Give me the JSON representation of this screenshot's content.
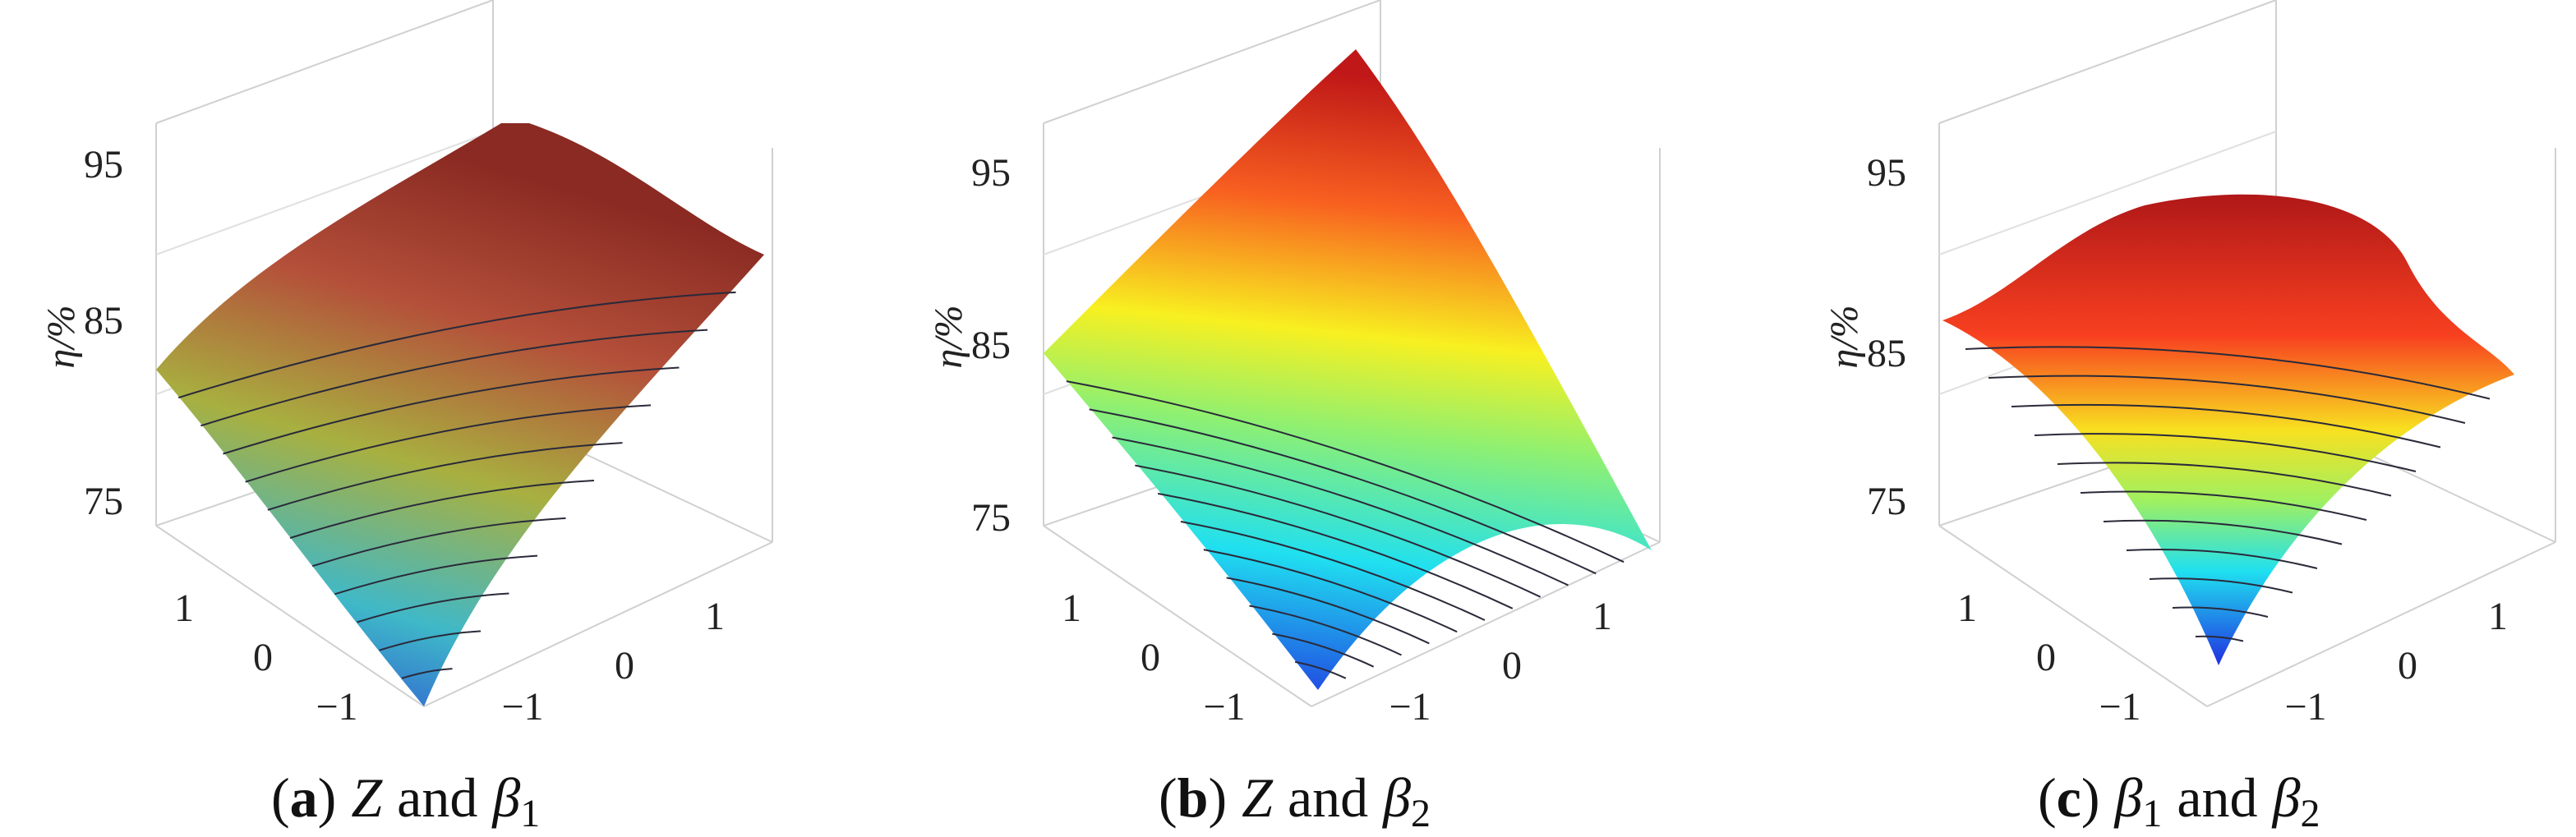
{
  "panels": [
    {
      "z_label": "η/%",
      "z_ticks": [
        "95",
        "85",
        "75"
      ],
      "left_ticks": [
        "1",
        "0",
        "−1"
      ],
      "right_ticks": [
        "1",
        "0",
        "−1"
      ],
      "caption": [
        {
          "text": "(",
          "style": "normal"
        },
        {
          "text": "a",
          "style": "bold"
        },
        {
          "text": ")",
          "style": "normal"
        },
        {
          "text": "Z",
          "style": "italic"
        },
        {
          "text": "and",
          "style": "normal"
        },
        {
          "text": "β",
          "style": "italic"
        },
        {
          "text": "1",
          "style": "sub"
        }
      ]
    },
    {
      "z_label": "η/%",
      "z_ticks": [
        "95",
        "85",
        "75"
      ],
      "left_ticks": [
        "1",
        "0",
        "−1"
      ],
      "right_ticks": [
        "1",
        "0",
        "−1"
      ],
      "caption": [
        {
          "text": "(",
          "style": "normal"
        },
        {
          "text": "b",
          "style": "bold"
        },
        {
          "text": ")",
          "style": "normal"
        },
        {
          "text": "Z",
          "style": "italic"
        },
        {
          "text": "and",
          "style": "normal"
        },
        {
          "text": "β",
          "style": "italic"
        },
        {
          "text": "2",
          "style": "sub"
        }
      ]
    },
    {
      "z_label": "η/%",
      "z_ticks": [
        "95",
        "85",
        "75"
      ],
      "left_ticks": [
        "1",
        "0",
        "−1"
      ],
      "right_ticks": [
        "1",
        "0",
        "−1"
      ],
      "caption": [
        {
          "text": "(",
          "style": "normal"
        },
        {
          "text": "c",
          "style": "bold"
        },
        {
          "text": ")",
          "style": "normal"
        },
        {
          "text": "β",
          "style": "italic"
        },
        {
          "text": "1",
          "style": "sub"
        },
        {
          "text": "and",
          "style": "normal"
        },
        {
          "text": "β",
          "style": "italic"
        },
        {
          "text": "2",
          "style": "sub"
        }
      ]
    }
  ]
}
